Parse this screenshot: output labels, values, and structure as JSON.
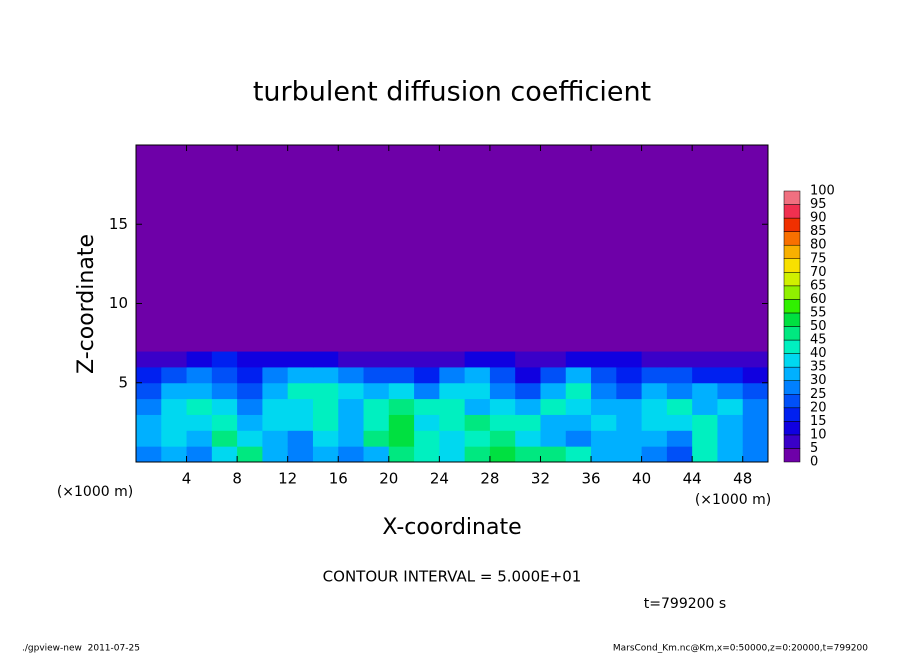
{
  "chart_data": {
    "type": "heatmap",
    "title": "turbulent diffusion coefficient",
    "xlabel": "X-coordinate",
    "ylabel": "Z-coordinate",
    "xunit": "(×1000 m)",
    "xlim": [
      0,
      50
    ],
    "ylim": [
      0,
      20
    ],
    "xticks": [
      4,
      8,
      12,
      16,
      20,
      24,
      28,
      32,
      36,
      40,
      44,
      48
    ],
    "yticks": [
      5,
      10,
      15
    ],
    "xbins": [
      0,
      2,
      4,
      6,
      8,
      10,
      12,
      14,
      16,
      18,
      20,
      22,
      24,
      26,
      28,
      30,
      32,
      34,
      36,
      38,
      40,
      42,
      44,
      46,
      48,
      50
    ],
    "ybins": [
      0,
      1,
      2,
      3,
      4,
      5,
      6,
      7,
      20
    ],
    "z": [
      [
        25,
        30,
        25,
        35,
        45,
        30,
        25,
        30,
        25,
        30,
        45,
        40,
        35,
        45,
        50,
        45,
        45,
        40,
        30,
        30,
        25,
        20,
        40,
        30,
        25
      ],
      [
        30,
        35,
        30,
        45,
        35,
        30,
        25,
        35,
        30,
        45,
        50,
        40,
        35,
        40,
        45,
        35,
        30,
        25,
        30,
        30,
        30,
        25,
        40,
        30,
        25
      ],
      [
        30,
        35,
        35,
        40,
        30,
        35,
        35,
        40,
        30,
        40,
        50,
        35,
        40,
        45,
        40,
        40,
        30,
        30,
        35,
        30,
        35,
        35,
        40,
        30,
        25
      ],
      [
        25,
        35,
        40,
        35,
        25,
        35,
        35,
        40,
        30,
        40,
        45,
        40,
        40,
        30,
        35,
        30,
        40,
        35,
        30,
        30,
        35,
        40,
        30,
        35,
        25
      ],
      [
        20,
        30,
        30,
        25,
        20,
        30,
        40,
        40,
        35,
        30,
        35,
        25,
        35,
        35,
        25,
        20,
        30,
        40,
        25,
        20,
        30,
        25,
        30,
        25,
        20
      ],
      [
        15,
        20,
        25,
        20,
        15,
        25,
        30,
        30,
        25,
        20,
        20,
        15,
        25,
        30,
        20,
        10,
        20,
        30,
        20,
        15,
        20,
        20,
        15,
        15,
        10
      ],
      [
        5,
        5,
        10,
        15,
        10,
        10,
        10,
        10,
        5,
        5,
        5,
        5,
        5,
        10,
        10,
        5,
        5,
        10,
        10,
        10,
        5,
        5,
        5,
        5,
        5
      ],
      [
        0,
        0,
        0,
        0,
        0,
        0,
        0,
        0,
        0,
        0,
        0,
        0,
        0,
        0,
        0,
        0,
        0,
        0,
        0,
        0,
        0,
        0,
        0,
        0,
        0
      ]
    ],
    "levels": [
      0,
      5,
      10,
      15,
      20,
      25,
      30,
      35,
      40,
      45,
      50,
      55,
      60,
      65,
      70,
      75,
      80,
      85,
      90,
      95,
      100
    ],
    "colors": [
      "#6e00a8",
      "#3a00c8",
      "#1000e0",
      "#0020f0",
      "#0050f8",
      "#0080ff",
      "#00b0ff",
      "#00d8f0",
      "#00f0c0",
      "#00e880",
      "#00e040",
      "#30f000",
      "#90f000",
      "#d0f000",
      "#f8e000",
      "#f8b000",
      "#f87000",
      "#f03000",
      "#f03050",
      "#f07080"
    ],
    "contour_note": "CONTOUR INTERVAL = 5.000E+01",
    "time_note": "t=799200 s",
    "footer_left": "./gpview-new  2011-07-25",
    "footer_right": "MarsCond_Km.nc@Km,x=0:50000,z=0:20000,t=799200"
  }
}
